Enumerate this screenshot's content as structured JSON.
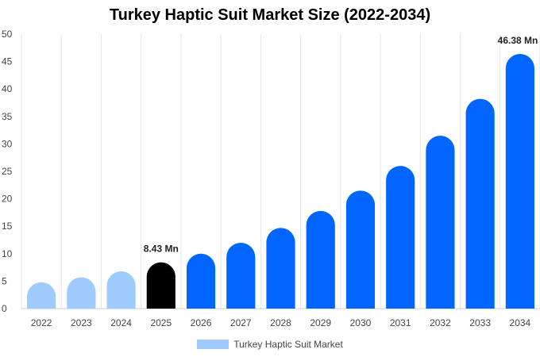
{
  "chart_data": {
    "type": "bar",
    "title": "Turkey Haptic Suit Market Size (2022-2034)",
    "xlabel": "",
    "ylabel": "",
    "categories": [
      "2022",
      "2023",
      "2024",
      "2025",
      "2026",
      "2027",
      "2028",
      "2029",
      "2030",
      "2031",
      "2032",
      "2033",
      "2034"
    ],
    "series": [
      {
        "name": "Turkey Haptic Suit Market",
        "values": [
          4.8,
          5.7,
          6.8,
          8.43,
          10.0,
          12.0,
          14.7,
          17.8,
          21.5,
          26.0,
          31.5,
          38.2,
          46.38
        ]
      }
    ],
    "ylim": [
      0,
      50
    ],
    "yticks": [
      0,
      5,
      10,
      15,
      20,
      25,
      30,
      35,
      40,
      45,
      50
    ],
    "data_labels": [
      {
        "index": 3,
        "text": "8.43 Mn"
      },
      {
        "index": 12,
        "text": "46.38 Mn"
      }
    ],
    "bar_colors": {
      "historical": "#a0cbff",
      "base_year": "#000000",
      "forecast": "#0066ff"
    },
    "historical_count": 3,
    "base_year_index": 3,
    "grid": "vertical",
    "grid_color": "#e6e6e6",
    "legend_position": "bottom"
  }
}
